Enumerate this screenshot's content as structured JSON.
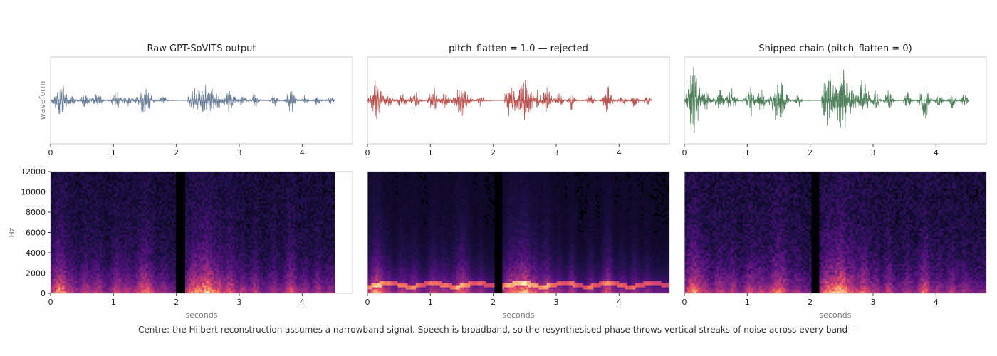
{
  "caption": "Centre: the Hilbert reconstruction assumes a narrowband signal. Speech is broadband, so the resynthesised phase throws vertical streaks of noise across every band —",
  "chart_data": [
    {
      "type": "line",
      "title": "Raw GPT-SoVITS output",
      "ylabel": "waveform",
      "xlabel": "",
      "color": "#6c7f99",
      "duration": 4.52,
      "xlim": [
        0,
        4.8
      ],
      "ylim": [
        -1,
        1
      ],
      "xticks": [
        0,
        1,
        2,
        3,
        4
      ],
      "grid": false,
      "bursts": [
        {
          "t": 0.15,
          "w": 0.1,
          "a": 0.45
        },
        {
          "t": 0.35,
          "w": 0.05,
          "a": 0.12
        },
        {
          "t": 0.55,
          "w": 0.07,
          "a": 0.18
        },
        {
          "t": 0.75,
          "w": 0.07,
          "a": 0.18
        },
        {
          "t": 1.05,
          "w": 0.07,
          "a": 0.22
        },
        {
          "t": 1.22,
          "w": 0.06,
          "a": 0.15
        },
        {
          "t": 1.5,
          "w": 0.11,
          "a": 0.35
        },
        {
          "t": 1.8,
          "w": 0.05,
          "a": 0.12
        },
        {
          "t": 2.28,
          "w": 0.1,
          "a": 0.35
        },
        {
          "t": 2.5,
          "w": 0.1,
          "a": 0.5
        },
        {
          "t": 2.68,
          "w": 0.05,
          "a": 0.2
        },
        {
          "t": 2.85,
          "w": 0.08,
          "a": 0.3
        },
        {
          "t": 3.05,
          "w": 0.05,
          "a": 0.14
        },
        {
          "t": 3.25,
          "w": 0.05,
          "a": 0.2
        },
        {
          "t": 3.55,
          "w": 0.05,
          "a": 0.15
        },
        {
          "t": 3.82,
          "w": 0.07,
          "a": 0.3
        },
        {
          "t": 4.05,
          "w": 0.05,
          "a": 0.12
        },
        {
          "t": 4.25,
          "w": 0.05,
          "a": 0.15
        },
        {
          "t": 4.45,
          "w": 0.05,
          "a": 0.1
        }
      ]
    },
    {
      "type": "line",
      "title": "pitch_flatten = 1.0  —  rejected",
      "ylabel": "",
      "xlabel": "",
      "color": "#b85450",
      "duration": 4.52,
      "xlim": [
        0,
        4.8
      ],
      "ylim": [
        -1,
        1
      ],
      "xticks": [
        0,
        1,
        2,
        3,
        4
      ],
      "grid": false,
      "bursts": [
        {
          "t": 0.15,
          "w": 0.1,
          "a": 0.5
        },
        {
          "t": 0.35,
          "w": 0.05,
          "a": 0.15
        },
        {
          "t": 0.55,
          "w": 0.07,
          "a": 0.2
        },
        {
          "t": 0.75,
          "w": 0.07,
          "a": 0.22
        },
        {
          "t": 1.05,
          "w": 0.07,
          "a": 0.3
        },
        {
          "t": 1.22,
          "w": 0.06,
          "a": 0.18
        },
        {
          "t": 1.5,
          "w": 0.11,
          "a": 0.4
        },
        {
          "t": 1.8,
          "w": 0.05,
          "a": 0.15
        },
        {
          "t": 2.28,
          "w": 0.1,
          "a": 0.4
        },
        {
          "t": 2.5,
          "w": 0.1,
          "a": 0.55
        },
        {
          "t": 2.68,
          "w": 0.05,
          "a": 0.25
        },
        {
          "t": 2.85,
          "w": 0.08,
          "a": 0.35
        },
        {
          "t": 3.05,
          "w": 0.05,
          "a": 0.18
        },
        {
          "t": 3.25,
          "w": 0.05,
          "a": 0.25
        },
        {
          "t": 3.55,
          "w": 0.05,
          "a": 0.18
        },
        {
          "t": 3.82,
          "w": 0.07,
          "a": 0.35
        },
        {
          "t": 4.05,
          "w": 0.05,
          "a": 0.15
        },
        {
          "t": 4.25,
          "w": 0.05,
          "a": 0.18
        },
        {
          "t": 4.45,
          "w": 0.05,
          "a": 0.12
        }
      ]
    },
    {
      "type": "line",
      "title": "Shipped chain  (pitch_flatten = 0)",
      "ylabel": "",
      "xlabel": "",
      "color": "#4f7f5b",
      "duration": 4.52,
      "xlim": [
        0,
        4.8
      ],
      "ylim": [
        -1,
        1
      ],
      "xticks": [
        0,
        1,
        2,
        3,
        4
      ],
      "grid": false,
      "bursts": [
        {
          "t": 0.15,
          "w": 0.1,
          "a": 0.85
        },
        {
          "t": 0.35,
          "w": 0.05,
          "a": 0.22
        },
        {
          "t": 0.55,
          "w": 0.07,
          "a": 0.3
        },
        {
          "t": 0.75,
          "w": 0.07,
          "a": 0.3
        },
        {
          "t": 1.05,
          "w": 0.07,
          "a": 0.4
        },
        {
          "t": 1.22,
          "w": 0.06,
          "a": 0.28
        },
        {
          "t": 1.5,
          "w": 0.11,
          "a": 0.65
        },
        {
          "t": 1.8,
          "w": 0.05,
          "a": 0.2
        },
        {
          "t": 2.28,
          "w": 0.1,
          "a": 0.7
        },
        {
          "t": 2.5,
          "w": 0.1,
          "a": 0.92
        },
        {
          "t": 2.68,
          "w": 0.05,
          "a": 0.35
        },
        {
          "t": 2.85,
          "w": 0.08,
          "a": 0.55
        },
        {
          "t": 3.05,
          "w": 0.05,
          "a": 0.25
        },
        {
          "t": 3.25,
          "w": 0.05,
          "a": 0.35
        },
        {
          "t": 3.55,
          "w": 0.05,
          "a": 0.25
        },
        {
          "t": 3.82,
          "w": 0.07,
          "a": 0.55
        },
        {
          "t": 4.05,
          "w": 0.05,
          "a": 0.2
        },
        {
          "t": 4.25,
          "w": 0.05,
          "a": 0.25
        },
        {
          "t": 4.45,
          "w": 0.05,
          "a": 0.18
        }
      ]
    },
    {
      "type": "heatmap",
      "title": "",
      "xlabel": "seconds",
      "ylabel": "Hz",
      "colormap": "magma",
      "duration": 4.52,
      "xlim": [
        0,
        4.8
      ],
      "ylim": [
        0,
        12000
      ],
      "xticks": [
        0,
        1,
        2,
        3,
        4
      ],
      "yticks": [
        0,
        2000,
        4000,
        6000,
        8000,
        10000,
        12000
      ],
      "f0_contour": false,
      "noise_level": 0.1
    },
    {
      "type": "heatmap",
      "title": "",
      "xlabel": "seconds",
      "ylabel": "",
      "colormap": "magma",
      "duration": 4.8,
      "xlim": [
        0,
        4.8
      ],
      "ylim": [
        0,
        12000
      ],
      "xticks": [
        0,
        1,
        2,
        3,
        4
      ],
      "yticks": [],
      "f0_contour": true,
      "noise_level": 0.03
    },
    {
      "type": "heatmap",
      "title": "",
      "xlabel": "seconds",
      "ylabel": "",
      "colormap": "magma",
      "duration": 4.8,
      "xlim": [
        0,
        4.8
      ],
      "ylim": [
        0,
        12000
      ],
      "xticks": [
        0,
        1,
        2,
        3,
        4
      ],
      "yticks": [],
      "f0_contour": false,
      "noise_level": 0.12
    }
  ]
}
